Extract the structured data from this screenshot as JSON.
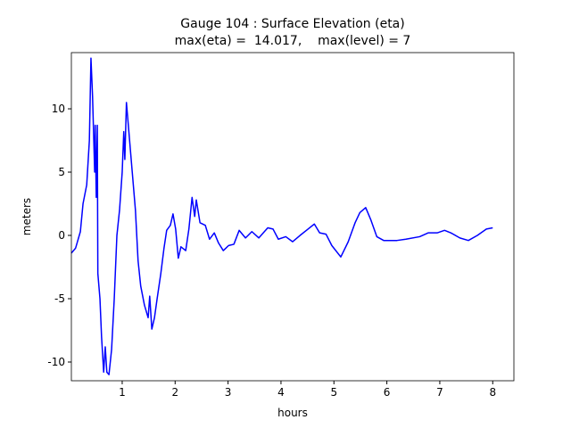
{
  "chart_data": {
    "type": "line",
    "title": "Gauge 104 : Surface Elevation (eta)",
    "subtitle": "max(eta) =  14.017,    max(level) = 7",
    "x_label": "hours",
    "y_label": "meters",
    "xlim": [
      0.04,
      8.4
    ],
    "ylim": [
      -11.48,
      14.44
    ],
    "xticks": [
      1,
      2,
      3,
      4,
      5,
      6,
      7,
      8
    ],
    "yticks": [
      -10,
      -5,
      0,
      5,
      10
    ],
    "grid": false,
    "series": [
      {
        "color": "#0000ff",
        "x": [
          0.04,
          0.12,
          0.21,
          0.26,
          0.33,
          0.38,
          0.41,
          0.44,
          0.48,
          0.49,
          0.51,
          0.53,
          0.54,
          0.58,
          0.61,
          0.65,
          0.68,
          0.71,
          0.75,
          0.8,
          0.85,
          0.9,
          0.95,
          1.0,
          1.03,
          1.05,
          1.08,
          1.13,
          1.19,
          1.25,
          1.3,
          1.35,
          1.42,
          1.49,
          1.52,
          1.56,
          1.61,
          1.66,
          1.73,
          1.79,
          1.84,
          1.91,
          1.96,
          2.01,
          2.06,
          2.11,
          2.2,
          2.26,
          2.32,
          2.37,
          2.4,
          2.47,
          2.57,
          2.65,
          2.74,
          2.82,
          2.91,
          3.01,
          3.11,
          3.21,
          3.33,
          3.45,
          3.58,
          3.75,
          3.85,
          3.95,
          4.09,
          4.22,
          4.36,
          4.51,
          4.63,
          4.73,
          4.85,
          4.96,
          5.13,
          5.27,
          5.4,
          5.49,
          5.6,
          5.7,
          5.81,
          5.94,
          6.19,
          6.36,
          6.62,
          6.78,
          6.95,
          7.09,
          7.21,
          7.38,
          7.54,
          7.71,
          7.88,
          8.0
        ],
        "values": [
          -1.4,
          -1.0,
          0.3,
          2.5,
          4.0,
          7.5,
          14.0,
          11,
          5,
          8.7,
          3,
          8.7,
          -3,
          -5,
          -8,
          -10.8,
          -8.8,
          -10.8,
          -11,
          -9,
          -5,
          0,
          2,
          5,
          8.2,
          6,
          10.5,
          8,
          5,
          2,
          -2,
          -4,
          -5.5,
          -6.5,
          -4.8,
          -7.4,
          -6.5,
          -5,
          -3,
          -1,
          0.4,
          0.8,
          1.7,
          0.5,
          -1.8,
          -0.9,
          -1.2,
          0.5,
          3.0,
          1.5,
          2.8,
          1,
          0.8,
          -0.3,
          0.2,
          -0.6,
          -1.2,
          -0.8,
          -0.7,
          0.4,
          -0.2,
          0.3,
          -0.2,
          0.6,
          0.5,
          -0.3,
          -0.1,
          -0.5,
          0,
          0.5,
          0.9,
          0.2,
          0.1,
          -0.8,
          -1.7,
          -0.5,
          1.0,
          1.8,
          2.2,
          1.2,
          -0.1,
          -0.4,
          -0.4,
          -0.3,
          -0.1,
          0.2,
          0.2,
          0.4,
          0.2,
          -0.2,
          -0.4,
          0,
          0.5,
          0.6
        ]
      }
    ]
  }
}
